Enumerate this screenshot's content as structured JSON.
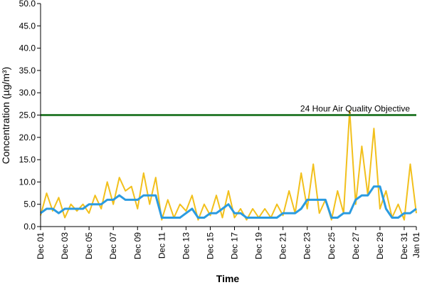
{
  "chart_data": {
    "type": "line",
    "xlabel": "Time",
    "ylabel": "Concentration (µg/m³)",
    "ylim": [
      0,
      50
    ],
    "yticks": [
      "0.0",
      "5.0",
      "10.0",
      "15.0",
      "20.0",
      "25.0",
      "30.0",
      "35.0",
      "40.0",
      "45.0",
      "50.0"
    ],
    "xlim": [
      "2023-12-01",
      "2024-01-01"
    ],
    "xticks": [
      "Dec 01",
      "Dec 03",
      "Dec 05",
      "Dec 07",
      "Dec 09",
      "Dec 11",
      "Dec 13",
      "Dec 15",
      "Dec 17",
      "Dec 19",
      "Dec 21",
      "Dec 23",
      "Dec 25",
      "Dec 27",
      "Dec 29",
      "Dec 31",
      "Jan 01"
    ],
    "grid": false,
    "reference_lines": [
      {
        "label": "24 Hour Air Quality Objective",
        "y": 25,
        "color": "#2e7d32"
      }
    ],
    "series": [
      {
        "color": "#f2c01c",
        "x": [
          "2023-12-01T00",
          "2023-12-01T12",
          "2023-12-02T00",
          "2023-12-02T12",
          "2023-12-03T00",
          "2023-12-03T12",
          "2023-12-04T00",
          "2023-12-04T12",
          "2023-12-05T00",
          "2023-12-05T12",
          "2023-12-06T00",
          "2023-12-06T12",
          "2023-12-07T00",
          "2023-12-07T12",
          "2023-12-08T00",
          "2023-12-08T12",
          "2023-12-09T00",
          "2023-12-09T12",
          "2023-12-10T00",
          "2023-12-10T12",
          "2023-12-11T00",
          "2023-12-11T12",
          "2023-12-12T00",
          "2023-12-12T12",
          "2023-12-13T00",
          "2023-12-13T12",
          "2023-12-14T00",
          "2023-12-14T12",
          "2023-12-15T00",
          "2023-12-15T12",
          "2023-12-16T00",
          "2023-12-16T12",
          "2023-12-17T00",
          "2023-12-17T12",
          "2023-12-18T00",
          "2023-12-18T12",
          "2023-12-19T00",
          "2023-12-19T12",
          "2023-12-20T00",
          "2023-12-20T12",
          "2023-12-21T00",
          "2023-12-21T12",
          "2023-12-22T00",
          "2023-12-22T12",
          "2023-12-23T00",
          "2023-12-23T12",
          "2023-12-24T00",
          "2023-12-24T12",
          "2023-12-25T00",
          "2023-12-25T12",
          "2023-12-26T00",
          "2023-12-26T12",
          "2023-12-27T00",
          "2023-12-27T12",
          "2023-12-28T00",
          "2023-12-28T12",
          "2023-12-29T00",
          "2023-12-29T12",
          "2023-12-30T00",
          "2023-12-30T12",
          "2023-12-31T00",
          "2023-12-31T12",
          "2024-01-01T00"
        ],
        "values": [
          2.5,
          7.5,
          3.5,
          6.5,
          2,
          5,
          3.5,
          5,
          3,
          7,
          4,
          10,
          5,
          11,
          8,
          9,
          4,
          12,
          5,
          11,
          1.5,
          6,
          2,
          5,
          3.5,
          7,
          1.5,
          5,
          2.5,
          7,
          2,
          8,
          2,
          4,
          1.5,
          4,
          2,
          4,
          2,
          5,
          2.5,
          8,
          3,
          12,
          4,
          14,
          3,
          6,
          1.5,
          8,
          3,
          26,
          5,
          18,
          7,
          22,
          4,
          8,
          2,
          5,
          1.5,
          14,
          3
        ]
      },
      {
        "color": "#2b9be0",
        "x": [
          "2023-12-01T00",
          "2023-12-01T12",
          "2023-12-02T00",
          "2023-12-02T12",
          "2023-12-03T00",
          "2023-12-03T12",
          "2023-12-04T00",
          "2023-12-04T12",
          "2023-12-05T00",
          "2023-12-05T12",
          "2023-12-06T00",
          "2023-12-06T12",
          "2023-12-07T00",
          "2023-12-07T12",
          "2023-12-08T00",
          "2023-12-08T12",
          "2023-12-09T00",
          "2023-12-09T12",
          "2023-12-10T00",
          "2023-12-10T12",
          "2023-12-11T00",
          "2023-12-11T12",
          "2023-12-12T00",
          "2023-12-12T12",
          "2023-12-13T00",
          "2023-12-13T12",
          "2023-12-14T00",
          "2023-12-14T12",
          "2023-12-15T00",
          "2023-12-15T12",
          "2023-12-16T00",
          "2023-12-16T12",
          "2023-12-17T00",
          "2023-12-17T12",
          "2023-12-18T00",
          "2023-12-18T12",
          "2023-12-19T00",
          "2023-12-19T12",
          "2023-12-20T00",
          "2023-12-20T12",
          "2023-12-21T00",
          "2023-12-21T12",
          "2023-12-22T00",
          "2023-12-22T12",
          "2023-12-23T00",
          "2023-12-23T12",
          "2023-12-24T00",
          "2023-12-24T12",
          "2023-12-25T00",
          "2023-12-25T12",
          "2023-12-26T00",
          "2023-12-26T12",
          "2023-12-27T00",
          "2023-12-27T12",
          "2023-12-28T00",
          "2023-12-28T12",
          "2023-12-29T00",
          "2023-12-29T12",
          "2023-12-30T00",
          "2023-12-30T12",
          "2023-12-31T00",
          "2023-12-31T12",
          "2024-01-01T00"
        ],
        "values": [
          3,
          4,
          4,
          3,
          4,
          4,
          4,
          4,
          5,
          5,
          5,
          6,
          6,
          7,
          6,
          6,
          6,
          7,
          7,
          7,
          2,
          2,
          2,
          2,
          3,
          4,
          2,
          2,
          3,
          3,
          4,
          5,
          3,
          3,
          2,
          2,
          2,
          2,
          2,
          2,
          3,
          3,
          3,
          4,
          6,
          6,
          6,
          6,
          2,
          2,
          3,
          3,
          6,
          7,
          7,
          9,
          9,
          4,
          2,
          2,
          3,
          3,
          4
        ]
      }
    ]
  }
}
